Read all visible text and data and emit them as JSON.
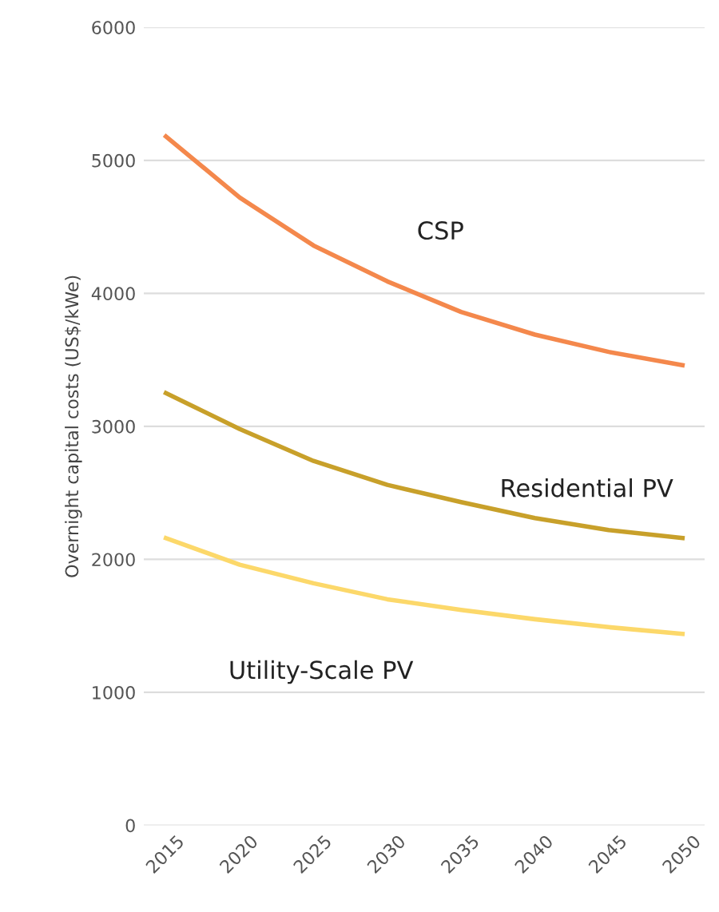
{
  "chart_data": {
    "type": "line",
    "ylabel": "Overnight capital costs (US$/kWe)",
    "categories": [
      "2015",
      "2020",
      "2025",
      "2030",
      "2035",
      "2040",
      "2045",
      "2050"
    ],
    "series": [
      {
        "name": "CSP",
        "color": "#f4884c",
        "values": [
          5180,
          4720,
          4360,
          4090,
          3860,
          3690,
          3560,
          3460
        ]
      },
      {
        "name": "Residential PV",
        "color": "#c8a02a",
        "values": [
          3250,
          2980,
          2740,
          2560,
          2430,
          2310,
          2220,
          2160
        ]
      },
      {
        "name": "Utility-Scale PV",
        "color": "#fcd86a",
        "values": [
          2160,
          1960,
          1820,
          1700,
          1620,
          1550,
          1490,
          1440
        ]
      }
    ],
    "ylim": [
      0,
      6000
    ],
    "yticks": [
      0,
      1000,
      2000,
      3000,
      4000,
      5000,
      6000
    ],
    "grid": "y",
    "legend": false,
    "marker": "none",
    "line_style": "solid"
  }
}
